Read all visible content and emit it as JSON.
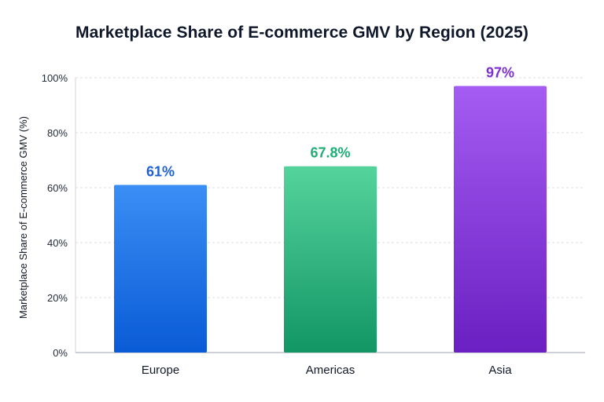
{
  "chart_data": {
    "type": "bar",
    "title": "Marketplace Share of E-commerce GMV by Region (2025)",
    "xlabel": "",
    "ylabel": "Marketplace Share of E-commerce GMV (%)",
    "categories": [
      "Europe",
      "Americas",
      "Asia"
    ],
    "values": [
      61,
      67.8,
      97
    ],
    "value_labels": [
      "61%",
      "67.8%",
      "97%"
    ],
    "ylim": [
      0,
      100
    ],
    "yticks": [
      0,
      20,
      40,
      60,
      80,
      100
    ],
    "ytick_labels": [
      "0%",
      "20%",
      "40%",
      "60%",
      "80%",
      "100%"
    ],
    "grid": true,
    "legend": "none",
    "colors": {
      "Europe": {
        "top": "#3b8ef5",
        "bottom": "#0a5bd6",
        "label": "#1d5fd6"
      },
      "Americas": {
        "top": "#55d39c",
        "bottom": "#129665",
        "label": "#1fae76"
      },
      "Asia": {
        "top": "#a45cf2",
        "bottom": "#6a20c2",
        "label": "#7c2fd6"
      }
    }
  }
}
